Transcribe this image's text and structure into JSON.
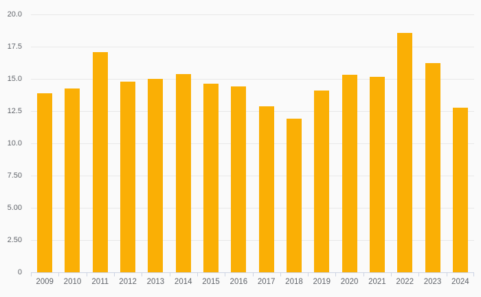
{
  "chart_data": {
    "type": "bar",
    "title": "",
    "xlabel": "",
    "ylabel": "",
    "categories": [
      "2009",
      "2010",
      "2011",
      "2012",
      "2013",
      "2014",
      "2015",
      "2016",
      "2017",
      "2018",
      "2019",
      "2020",
      "2021",
      "2022",
      "2023",
      "2024"
    ],
    "values": [
      13.9,
      14.25,
      17.1,
      14.8,
      15.0,
      15.35,
      14.65,
      14.4,
      12.85,
      11.9,
      14.1,
      15.3,
      15.15,
      18.55,
      16.2,
      12.75
    ],
    "ylim": [
      0,
      20
    ],
    "y_ticks": [
      {
        "value": 0,
        "label": "0"
      },
      {
        "value": 2.5,
        "label": "2.50"
      },
      {
        "value": 5,
        "label": "5.00"
      },
      {
        "value": 7.5,
        "label": "7.50"
      },
      {
        "value": 10,
        "label": "10.0"
      },
      {
        "value": 12.5,
        "label": "12.5"
      },
      {
        "value": 15,
        "label": "15.0"
      },
      {
        "value": 17.5,
        "label": "17.5"
      },
      {
        "value": 20,
        "label": "20.0"
      }
    ],
    "grid": true,
    "legend": "none",
    "colors": {
      "bar": "#faaf05",
      "background": "#fafafa",
      "gridline": "#e8e8e8",
      "axis_line": "#ccd3e3",
      "tick_label": "#5f6369"
    }
  }
}
